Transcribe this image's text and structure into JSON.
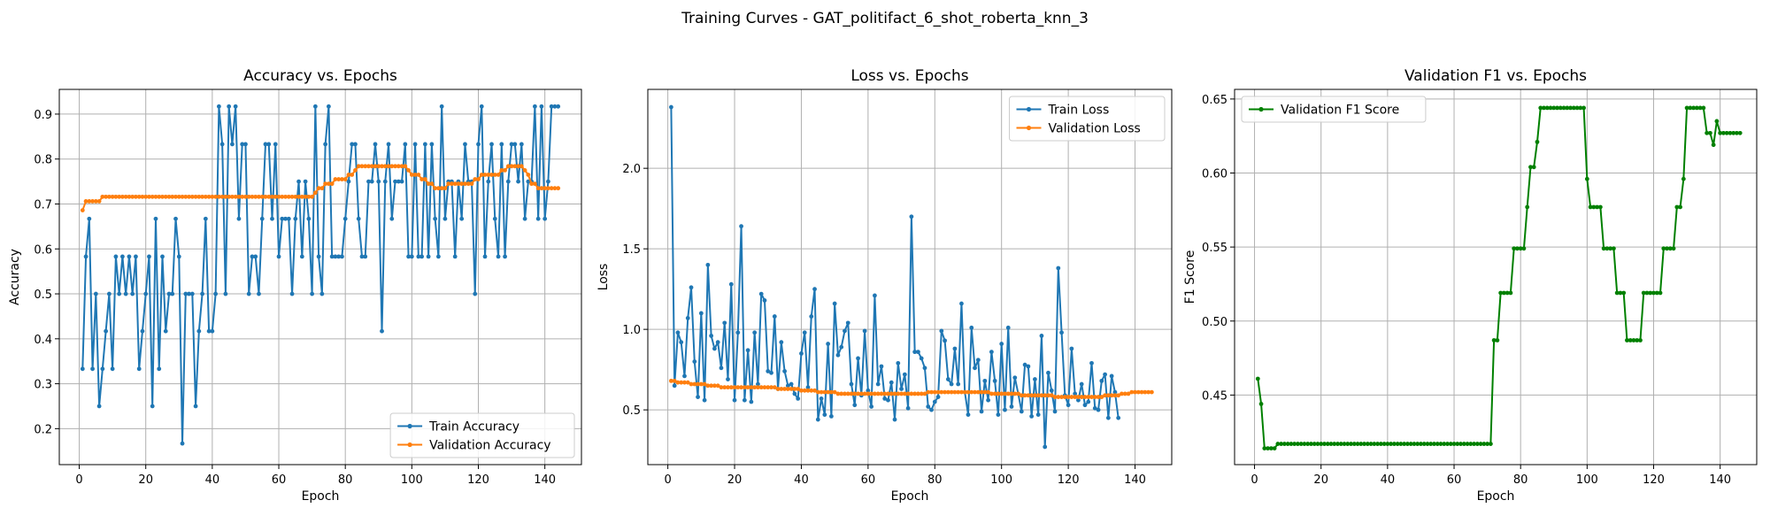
{
  "suptitle": "Training Curves - GAT_politifact_6_shot_roberta_knn_3",
  "colors": {
    "blue": "#1f77b4",
    "orange": "#ff7f0e",
    "green": "#008000",
    "grid": "#b0b0b0"
  },
  "chart_data": [
    {
      "type": "line",
      "title": "Accuracy vs. Epochs",
      "xlabel": "Epoch",
      "ylabel": "Accuracy",
      "xlim": [
        -6,
        151
      ],
      "ylim": [
        0.12,
        0.955
      ],
      "xticks": [
        0,
        20,
        40,
        60,
        80,
        100,
        120,
        140
      ],
      "yticks": [
        0.2,
        0.3,
        0.4,
        0.5,
        0.6,
        0.7,
        0.8,
        0.9
      ],
      "ytick_decimals": 1,
      "grid": true,
      "legend_position": "lower-right",
      "series": [
        {
          "name": "Train Accuracy",
          "color": "#1f77b4",
          "x_start": 1,
          "values": [
            0.333,
            0.583,
            0.667,
            0.333,
            0.5,
            0.25,
            0.333,
            0.417,
            0.5,
            0.333,
            0.583,
            0.5,
            0.583,
            0.5,
            0.583,
            0.5,
            0.583,
            0.333,
            0.417,
            0.5,
            0.583,
            0.25,
            0.667,
            0.333,
            0.583,
            0.417,
            0.5,
            0.5,
            0.667,
            0.583,
            0.167,
            0.5,
            0.5,
            0.5,
            0.25,
            0.417,
            0.5,
            0.667,
            0.417,
            0.417,
            0.5,
            0.917,
            0.833,
            0.5,
            0.917,
            0.833,
            0.917,
            0.667,
            0.833,
            0.833,
            0.5,
            0.583,
            0.583,
            0.5,
            0.667,
            0.833,
            0.833,
            0.667,
            0.833,
            0.583,
            0.667,
            0.667,
            0.667,
            0.5,
            0.667,
            0.75,
            0.583,
            0.75,
            0.667,
            0.5,
            0.917,
            0.583,
            0.5,
            0.833,
            0.917,
            0.583,
            0.583,
            0.583,
            0.583,
            0.667,
            0.75,
            0.833,
            0.833,
            0.667,
            0.583,
            0.583,
            0.75,
            0.75,
            0.833,
            0.75,
            0.417,
            0.75,
            0.833,
            0.667,
            0.75,
            0.75,
            0.75,
            0.833,
            0.583,
            0.583,
            0.833,
            0.583,
            0.583,
            0.833,
            0.583,
            0.833,
            0.667,
            0.583,
            0.917,
            0.667,
            0.75,
            0.75,
            0.583,
            0.75,
            0.667,
            0.833,
            0.75,
            0.75,
            0.5,
            0.833,
            0.917,
            0.583,
            0.75,
            0.833,
            0.667,
            0.583,
            0.833,
            0.583,
            0.75,
            0.833,
            0.833,
            0.75,
            0.833,
            0.667,
            0.75,
            0.75,
            0.917,
            0.667,
            0.917,
            0.667,
            0.75,
            0.917,
            0.917,
            0.917
          ]
        },
        {
          "name": "Validation Accuracy",
          "color": "#ff7f0e",
          "x_start": 1,
          "values": [
            0.686,
            0.706,
            0.706,
            0.706,
            0.706,
            0.706,
            0.716,
            0.716,
            0.716,
            0.716,
            0.716,
            0.716,
            0.716,
            0.716,
            0.716,
            0.716,
            0.716,
            0.716,
            0.716,
            0.716,
            0.716,
            0.716,
            0.716,
            0.716,
            0.716,
            0.716,
            0.716,
            0.716,
            0.716,
            0.716,
            0.716,
            0.716,
            0.716,
            0.716,
            0.716,
            0.716,
            0.716,
            0.716,
            0.716,
            0.716,
            0.716,
            0.716,
            0.716,
            0.716,
            0.716,
            0.716,
            0.716,
            0.716,
            0.716,
            0.716,
            0.716,
            0.716,
            0.716,
            0.716,
            0.716,
            0.716,
            0.716,
            0.716,
            0.716,
            0.716,
            0.716,
            0.716,
            0.716,
            0.716,
            0.716,
            0.716,
            0.716,
            0.716,
            0.716,
            0.716,
            0.725,
            0.735,
            0.735,
            0.745,
            0.745,
            0.745,
            0.755,
            0.755,
            0.755,
            0.755,
            0.765,
            0.765,
            0.775,
            0.784,
            0.784,
            0.784,
            0.784,
            0.784,
            0.784,
            0.784,
            0.784,
            0.784,
            0.784,
            0.784,
            0.784,
            0.784,
            0.784,
            0.784,
            0.775,
            0.765,
            0.765,
            0.765,
            0.755,
            0.755,
            0.745,
            0.745,
            0.735,
            0.735,
            0.735,
            0.735,
            0.745,
            0.745,
            0.745,
            0.745,
            0.745,
            0.745,
            0.745,
            0.745,
            0.755,
            0.755,
            0.765,
            0.765,
            0.765,
            0.765,
            0.765,
            0.765,
            0.775,
            0.775,
            0.784,
            0.784,
            0.784,
            0.784,
            0.784,
            0.775,
            0.765,
            0.745,
            0.745,
            0.735,
            0.735,
            0.735,
            0.735,
            0.735,
            0.735,
            0.735
          ]
        }
      ]
    },
    {
      "type": "line",
      "title": "Loss vs. Epochs",
      "xlabel": "Epoch",
      "ylabel": "Loss",
      "xlim": [
        -6,
        151
      ],
      "ylim": [
        0.16,
        2.49
      ],
      "xticks": [
        0,
        20,
        40,
        60,
        80,
        100,
        120,
        140
      ],
      "yticks": [
        0.5,
        1.0,
        1.5,
        2.0
      ],
      "ytick_decimals": 1,
      "grid": true,
      "legend_position": "upper-right",
      "series": [
        {
          "name": "Train Loss",
          "color": "#1f77b4",
          "x_start": 1,
          "values": [
            2.38,
            0.65,
            0.98,
            0.92,
            0.71,
            1.07,
            1.26,
            0.8,
            0.58,
            1.1,
            0.56,
            1.4,
            0.96,
            0.88,
            0.92,
            0.76,
            1.04,
            0.69,
            1.28,
            0.56,
            0.98,
            1.64,
            0.56,
            0.87,
            0.55,
            0.98,
            0.66,
            1.22,
            1.18,
            0.74,
            0.73,
            1.08,
            0.63,
            0.92,
            0.74,
            0.65,
            0.66,
            0.6,
            0.57,
            0.85,
            0.98,
            0.64,
            1.08,
            1.25,
            0.44,
            0.57,
            0.47,
            0.91,
            0.46,
            1.16,
            0.84,
            0.89,
            0.99,
            1.04,
            0.66,
            0.53,
            0.82,
            0.59,
            0.99,
            0.62,
            0.52,
            1.21,
            0.66,
            0.77,
            0.57,
            0.56,
            0.67,
            0.44,
            0.79,
            0.63,
            0.72,
            0.51,
            1.7,
            0.86,
            0.86,
            0.82,
            0.76,
            0.52,
            0.5,
            0.55,
            0.58,
            0.99,
            0.93,
            0.69,
            0.66,
            0.88,
            0.66,
            1.16,
            0.61,
            0.47,
            1.01,
            0.76,
            0.81,
            0.49,
            0.68,
            0.56,
            0.86,
            0.68,
            0.47,
            0.91,
            0.5,
            1.01,
            0.52,
            0.7,
            0.6,
            0.49,
            0.78,
            0.77,
            0.46,
            0.69,
            0.47,
            0.96,
            0.27,
            0.73,
            0.62,
            0.49,
            1.38,
            0.98,
            0.59,
            0.53,
            0.88,
            0.6,
            0.56,
            0.66,
            0.53,
            0.55,
            0.79,
            0.51,
            0.5,
            0.68,
            0.72,
            0.45,
            0.71,
            0.61,
            0.45
          ]
        },
        {
          "name": "Validation Loss",
          "color": "#ff7f0e",
          "x_start": 1,
          "values": [
            0.68,
            0.68,
            0.67,
            0.67,
            0.67,
            0.67,
            0.66,
            0.66,
            0.66,
            0.66,
            0.66,
            0.65,
            0.65,
            0.65,
            0.65,
            0.64,
            0.64,
            0.64,
            0.64,
            0.64,
            0.64,
            0.64,
            0.64,
            0.64,
            0.64,
            0.64,
            0.64,
            0.64,
            0.64,
            0.64,
            0.64,
            0.64,
            0.63,
            0.63,
            0.63,
            0.63,
            0.63,
            0.63,
            0.63,
            0.62,
            0.62,
            0.62,
            0.62,
            0.62,
            0.61,
            0.61,
            0.61,
            0.61,
            0.61,
            0.61,
            0.6,
            0.6,
            0.6,
            0.6,
            0.6,
            0.6,
            0.6,
            0.6,
            0.6,
            0.6,
            0.6,
            0.6,
            0.6,
            0.6,
            0.6,
            0.6,
            0.6,
            0.6,
            0.6,
            0.6,
            0.6,
            0.6,
            0.6,
            0.6,
            0.6,
            0.6,
            0.6,
            0.61,
            0.61,
            0.61,
            0.61,
            0.61,
            0.61,
            0.61,
            0.61,
            0.61,
            0.61,
            0.61,
            0.61,
            0.61,
            0.61,
            0.61,
            0.61,
            0.61,
            0.61,
            0.61,
            0.6,
            0.6,
            0.6,
            0.6,
            0.6,
            0.6,
            0.6,
            0.6,
            0.6,
            0.59,
            0.59,
            0.59,
            0.59,
            0.59,
            0.59,
            0.59,
            0.59,
            0.59,
            0.59,
            0.58,
            0.58,
            0.58,
            0.58,
            0.58,
            0.58,
            0.58,
            0.58,
            0.58,
            0.58,
            0.58,
            0.58,
            0.58,
            0.58,
            0.58,
            0.59,
            0.59,
            0.59,
            0.59,
            0.59,
            0.6,
            0.6,
            0.6,
            0.61,
            0.61,
            0.61,
            0.61,
            0.61,
            0.61,
            0.61
          ]
        }
      ]
    },
    {
      "type": "line",
      "title": "Validation F1 vs. Epochs",
      "xlabel": "Epoch",
      "ylabel": "F1 Score",
      "xlim": [
        -6,
        151
      ],
      "ylim": [
        0.403,
        0.6565
      ],
      "xticks": [
        0,
        20,
        40,
        60,
        80,
        100,
        120,
        140
      ],
      "yticks": [
        0.45,
        0.5,
        0.55,
        0.6,
        0.65
      ],
      "ytick_decimals": 2,
      "grid": true,
      "legend_position": "upper-left",
      "series": [
        {
          "name": "Validation F1 Score",
          "color": "#008000",
          "x_start": 1,
          "values": [
            0.461,
            0.444,
            0.414,
            0.414,
            0.414,
            0.414,
            0.417,
            0.417,
            0.417,
            0.417,
            0.417,
            0.417,
            0.417,
            0.417,
            0.417,
            0.417,
            0.417,
            0.417,
            0.417,
            0.417,
            0.417,
            0.417,
            0.417,
            0.417,
            0.417,
            0.417,
            0.417,
            0.417,
            0.417,
            0.417,
            0.417,
            0.417,
            0.417,
            0.417,
            0.417,
            0.417,
            0.417,
            0.417,
            0.417,
            0.417,
            0.417,
            0.417,
            0.417,
            0.417,
            0.417,
            0.417,
            0.417,
            0.417,
            0.417,
            0.417,
            0.417,
            0.417,
            0.417,
            0.417,
            0.417,
            0.417,
            0.417,
            0.417,
            0.417,
            0.417,
            0.417,
            0.417,
            0.417,
            0.417,
            0.417,
            0.417,
            0.417,
            0.417,
            0.417,
            0.417,
            0.417,
            0.487,
            0.487,
            0.519,
            0.519,
            0.519,
            0.519,
            0.549,
            0.549,
            0.549,
            0.549,
            0.577,
            0.604,
            0.604,
            0.621,
            0.644,
            0.644,
            0.644,
            0.644,
            0.644,
            0.644,
            0.644,
            0.644,
            0.644,
            0.644,
            0.644,
            0.644,
            0.644,
            0.644,
            0.596,
            0.577,
            0.577,
            0.577,
            0.577,
            0.549,
            0.549,
            0.549,
            0.549,
            0.519,
            0.519,
            0.519,
            0.487,
            0.487,
            0.487,
            0.487,
            0.487,
            0.519,
            0.519,
            0.519,
            0.519,
            0.519,
            0.519,
            0.549,
            0.549,
            0.549,
            0.549,
            0.577,
            0.577,
            0.596,
            0.644,
            0.644,
            0.644,
            0.644,
            0.644,
            0.644,
            0.627,
            0.627,
            0.619,
            0.635,
            0.627,
            0.627,
            0.627,
            0.627,
            0.627,
            0.627,
            0.627
          ]
        }
      ]
    }
  ]
}
